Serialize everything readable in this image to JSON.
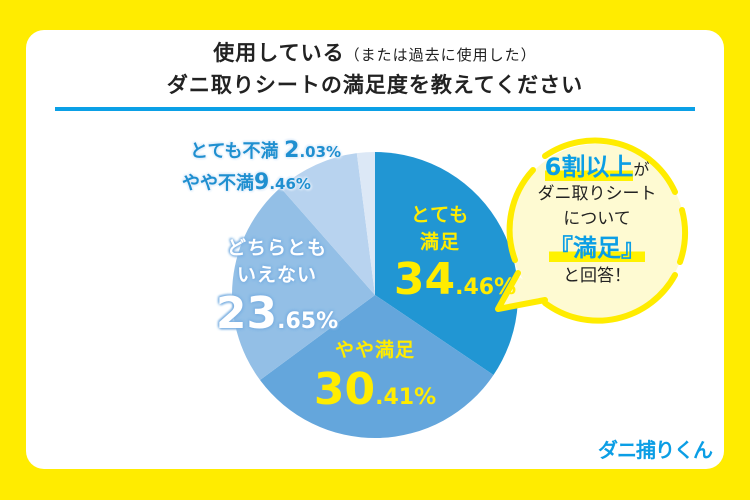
{
  "title": {
    "line1_main": "使用している",
    "line1_sub": "（または過去に使用した）",
    "line2": "ダニ取りシートの満足度を教えてください"
  },
  "colors": {
    "background": "#ffec00",
    "card": "#ffffff",
    "rule": "#0ba0e6",
    "highlight_text": "#ffec00",
    "bubble_fill": "#fefad2",
    "bubble_stroke": "#ffec00",
    "logo": "#0b9ee5"
  },
  "chart_data": {
    "type": "pie",
    "title": "使用している（または過去に使用した）ダニ取りシートの満足度を教えてください",
    "start_angle_deg": -90,
    "direction": "clockwise",
    "unit": "%",
    "categories": [
      "とても満足",
      "やや満足",
      "どちらともいえない",
      "やや不満",
      "とても不満"
    ],
    "values": [
      34.46,
      30.41,
      23.65,
      9.46,
      2.03
    ],
    "colors": [
      "#2196d3",
      "#64a6dc",
      "#93bfe6",
      "#b8d3ef",
      "#dce8f6"
    ],
    "center": [
      375,
      295
    ],
    "radius": 143
  },
  "labels": {
    "very_satisfied": {
      "line1": "とても",
      "line2": "満足",
      "int": "34",
      "dec": ".46%"
    },
    "somewhat_satisfied": {
      "line1": "やや満足",
      "int": "30",
      "dec": ".41%"
    },
    "neutral": {
      "line1": "どちらとも",
      "line2": "いえない",
      "int": "23",
      "dec": ".65%"
    },
    "somewhat_dissatisfied": {
      "label": "やや不満",
      "int": "9",
      "dec": ".46%"
    },
    "very_dissatisfied": {
      "label": "とても不満",
      "int": "2",
      "dec": ".03%"
    }
  },
  "bubble": {
    "highlight": "6割以上",
    "after_highlight": "が",
    "line2": "ダニ取りシート",
    "line3": "について",
    "emphasis": "『満足』",
    "line5": "と回答！"
  },
  "logo": {
    "text": "ダニ捕りくん"
  }
}
